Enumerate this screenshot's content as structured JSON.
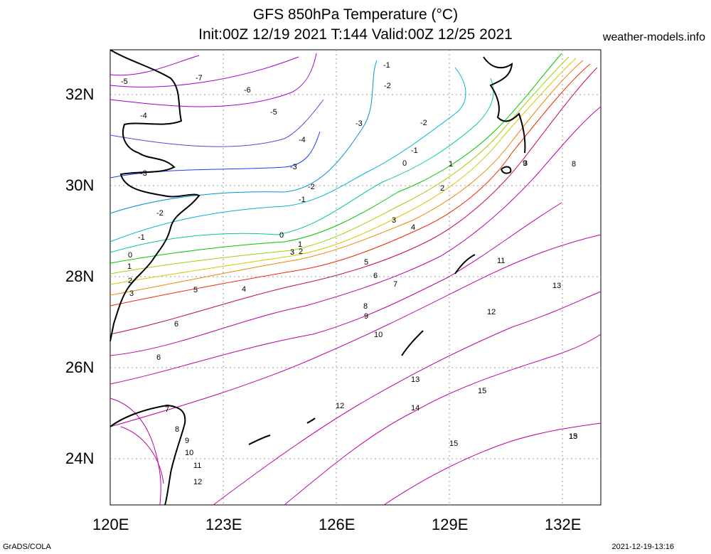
{
  "title_line1": "GFS 850hPa Temperature (°C)",
  "title_line2": "Init:00Z 12/19 2021 T:144 Valid:00Z 12/25 2021",
  "source": "weather-models.info",
  "footer_left": "GrADS/COLA",
  "footer_right": "2021-12-19-13:16",
  "lat_labels": [
    "32N",
    "30N",
    "28N",
    "26N",
    "24N"
  ],
  "lon_labels": [
    "120E",
    "123E",
    "126E",
    "129E",
    "132E"
  ],
  "contour_labels": [
    "-7",
    "-6",
    "-5",
    "-5",
    "-4",
    "-4",
    "-3",
    "-3",
    "-3",
    "-2",
    "-2",
    "-2",
    "-2",
    "-1",
    "-1",
    "-1",
    "-1",
    "0",
    "0",
    "0",
    "1",
    "1",
    "1",
    "2",
    "2",
    "2",
    "3",
    "3",
    "3",
    "3",
    "4",
    "4",
    "5",
    "5",
    "6",
    "6",
    "6",
    "7",
    "7",
    "8",
    "8",
    "8",
    "9",
    "9",
    "9",
    "10",
    "10",
    "11",
    "11",
    "12",
    "12",
    "12",
    "13",
    "13",
    "13",
    "14",
    "15",
    "15",
    "15"
  ],
  "colors": {
    "magenta": "#c000a0",
    "purple": "#a000c8",
    "blue": "#1e3cff",
    "cyan": "#00b4d2",
    "green": "#00c800",
    "yellow": "#a0d200",
    "orange": "#f08200",
    "red": "#f02800",
    "coast": "#000000",
    "grid": "#999999"
  }
}
